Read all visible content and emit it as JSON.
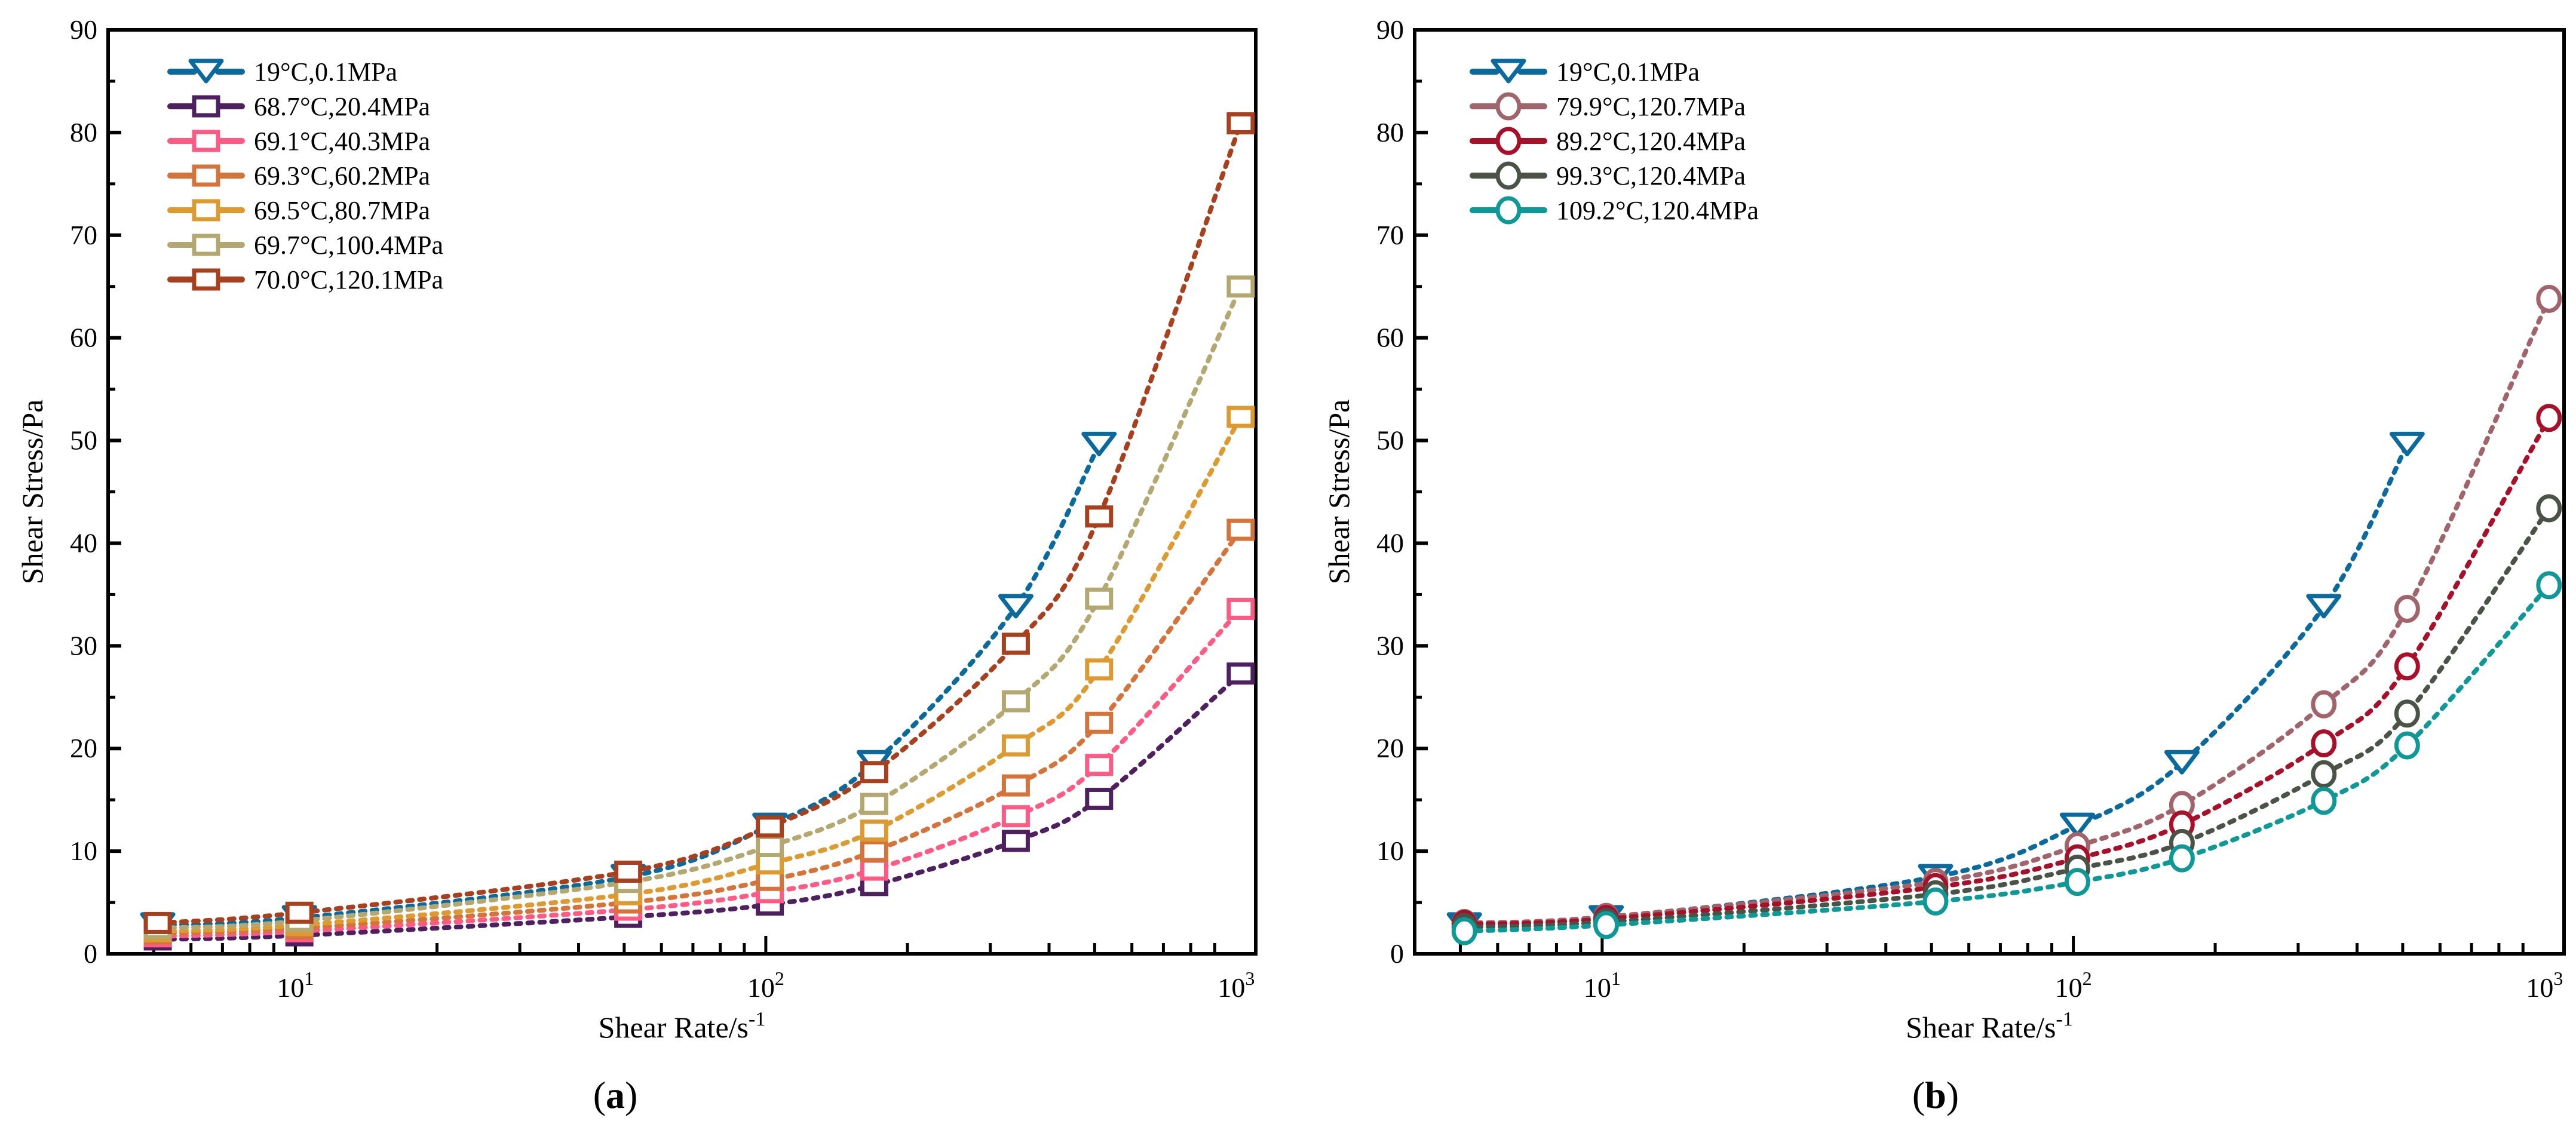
{
  "chart_data": [
    {
      "type": "line",
      "panel_label": "a",
      "xlabel": "Shear Rate/s",
      "xlabel_sup": "-1",
      "ylabel": "Shear Stress/Pa",
      "xscale": "log",
      "xlim": [
        4,
        1100
      ],
      "ylim": [
        0,
        90
      ],
      "yticks": [
        "0",
        "10",
        "20",
        "30",
        "40",
        "50",
        "60",
        "70",
        "80",
        "90"
      ],
      "xticks": [
        {
          "base": "10",
          "exp": "1",
          "value": 10
        },
        {
          "base": "10",
          "exp": "2",
          "value": 100
        },
        {
          "base": "10",
          "exp": "3",
          "value": 1000
        }
      ],
      "legend_position": "top-left",
      "x": [
        5.1,
        10.2,
        51,
        102,
        170,
        340,
        511,
        1022
      ],
      "series": [
        {
          "name": "19°C,0.1MPa",
          "color": "#0a6a9e",
          "marker": "triangle-down",
          "values": [
            2.8,
            3.5,
            7.5,
            12.5,
            18.6,
            33.8,
            49.6,
            null
          ]
        },
        {
          "name": "68.7°C,20.4MPa",
          "color": "#4e2060",
          "marker": "square",
          "values": [
            1.4,
            1.8,
            3.6,
            4.8,
            6.7,
            11.0,
            15.1,
            27.3
          ]
        },
        {
          "name": "69.1°C,40.3MPa",
          "color": "#ff5a84",
          "marker": "square",
          "values": [
            1.7,
            2.2,
            4.3,
            6.0,
            8.2,
            13.4,
            18.4,
            33.6
          ]
        },
        {
          "name": "69.3°C,60.2MPa",
          "color": "#d4743a",
          "marker": "square",
          "values": [
            2.0,
            2.5,
            5.0,
            7.2,
            10.0,
            16.4,
            22.5,
            41.3
          ]
        },
        {
          "name": "69.5°C,80.7MPa",
          "color": "#dc9a30",
          "marker": "square",
          "values": [
            2.2,
            2.8,
            5.8,
            8.8,
            12.0,
            20.3,
            27.7,
            52.3
          ]
        },
        {
          "name": "69.7°C,100.4MPa",
          "color": "#b4a870",
          "marker": "square",
          "values": [
            2.5,
            3.2,
            7.0,
            10.5,
            14.6,
            24.6,
            34.6,
            65.0
          ]
        },
        {
          "name": "70.0°C,120.1MPa",
          "color": "#a8401e",
          "marker": "square",
          "values": [
            3.0,
            4.0,
            8.0,
            12.4,
            17.7,
            30.2,
            42.6,
            80.9
          ]
        }
      ]
    },
    {
      "type": "line",
      "panel_label": "b",
      "xlabel": "Shear Rate/s",
      "xlabel_sup": "-1",
      "ylabel": "Shear Stress/Pa",
      "xscale": "log",
      "xlim": [
        4,
        1100
      ],
      "ylim": [
        0,
        90
      ],
      "yticks": [
        "0",
        "10",
        "20",
        "30",
        "40",
        "50",
        "60",
        "70",
        "80",
        "90"
      ],
      "xticks": [
        {
          "base": "10",
          "exp": "1",
          "value": 10
        },
        {
          "base": "10",
          "exp": "2",
          "value": 100
        },
        {
          "base": "10",
          "exp": "3",
          "value": 1000
        }
      ],
      "legend_position": "top-left",
      "x": [
        5.1,
        10.2,
        51,
        102,
        170,
        340,
        511,
        1022
      ],
      "series": [
        {
          "name": "19°C,0.1MPa",
          "color": "#0a6a9e",
          "marker": "triangle-down",
          "values": [
            2.8,
            3.5,
            7.5,
            12.5,
            18.6,
            33.8,
            49.6,
            null
          ]
        },
        {
          "name": "79.9°C,120.7MPa",
          "color": "#a0646a",
          "marker": "circle",
          "values": [
            3.0,
            3.6,
            7.0,
            10.5,
            14.5,
            24.3,
            33.6,
            63.8
          ]
        },
        {
          "name": "89.2°C,120.4MPa",
          "color": "#a8102a",
          "marker": "circle",
          "values": [
            2.9,
            3.4,
            6.5,
            9.3,
            12.6,
            20.5,
            28.0,
            52.2
          ]
        },
        {
          "name": "99.3°C,120.4MPa",
          "color": "#4a5446",
          "marker": "circle",
          "values": [
            2.6,
            3.1,
            5.8,
            8.3,
            10.8,
            17.5,
            23.4,
            43.4
          ]
        },
        {
          "name": "109.2°C,120.4MPa",
          "color": "#0e9898",
          "marker": "circle",
          "values": [
            2.2,
            2.8,
            5.1,
            7.0,
            9.3,
            14.9,
            20.3,
            35.9
          ]
        }
      ]
    }
  ]
}
